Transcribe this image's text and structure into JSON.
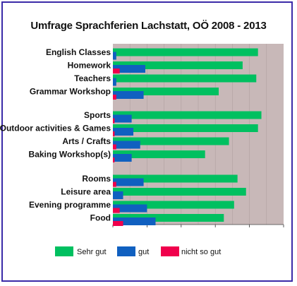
{
  "chart_data": {
    "type": "bar",
    "orientation": "horizontal",
    "stacking": "overlaid",
    "title": "Umfrage Sprachferien Lachstatt, OÖ 2008 - 2013",
    "xlabel": "",
    "ylabel": "",
    "xlim": [
      0,
      100
    ],
    "grid": true,
    "legend_position": "bottom",
    "groups": [
      [
        "English Classes",
        "Homework",
        "Teachers",
        "Grammar Workshop"
      ],
      [
        "Sports",
        "Outdoor activities & Games",
        "Arts / Crafts",
        "Baking Workshop(s)"
      ],
      [
        "Rooms",
        "Leisure area",
        "Evening programme",
        "Food"
      ]
    ],
    "categories": [
      "English Classes",
      "Homework",
      "Teachers",
      "Grammar Workshop",
      "Sports",
      "Outdoor activities & Games",
      "Arts / Crafts",
      "Baking Workshop(s)",
      "Rooms",
      "Leisure area",
      "Evening programme",
      "Food"
    ],
    "series": [
      {
        "name": "Sehr gut",
        "color": "#00c060",
        "values": [
          85,
          76,
          84,
          62,
          87,
          85,
          68,
          54,
          73,
          78,
          71,
          65
        ]
      },
      {
        "name": "gut",
        "color": "#1060c0",
        "values": [
          2,
          19,
          2,
          18,
          11,
          12,
          16,
          11,
          18,
          6,
          20,
          25
        ]
      },
      {
        "name": "nicht so gut",
        "color": "#f0004c",
        "values": [
          0,
          4,
          0,
          2,
          1,
          1,
          2,
          1,
          2,
          0,
          4,
          6
        ]
      }
    ]
  }
}
